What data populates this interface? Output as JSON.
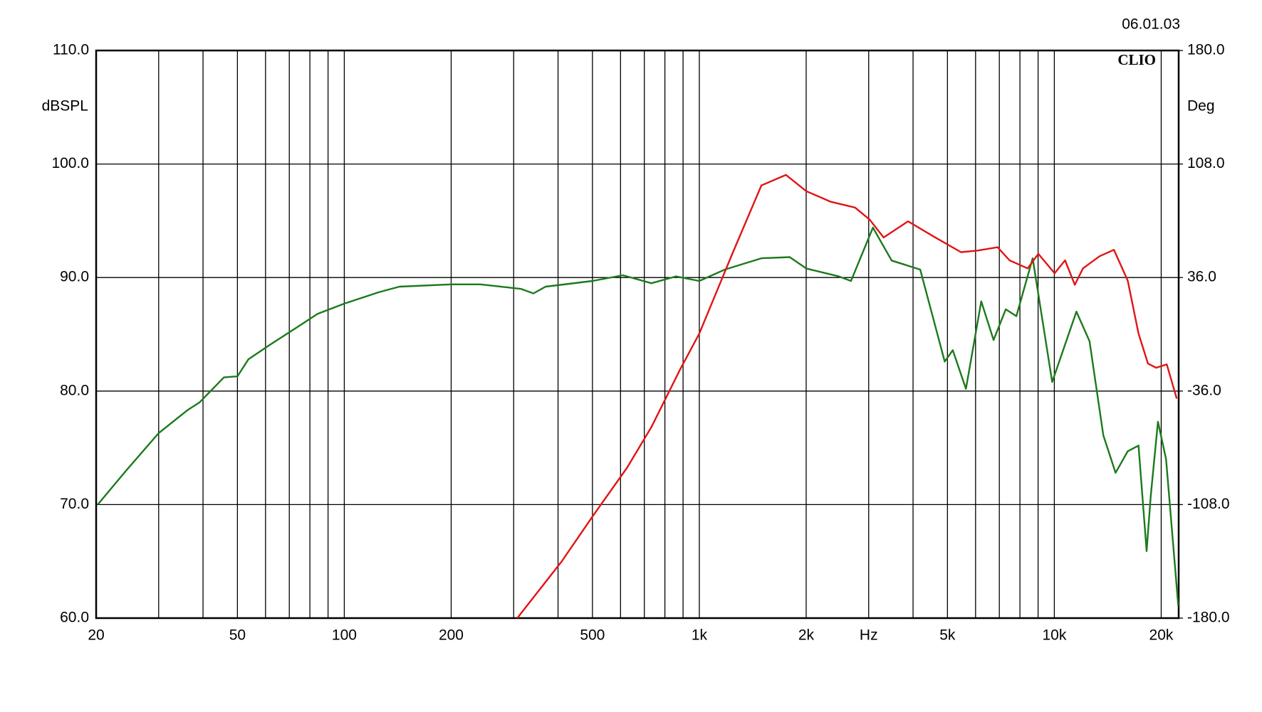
{
  "chart_data": {
    "type": "line",
    "date": "06.01.03",
    "brand": "CLIO",
    "y_label": "dBSPL",
    "y2_label": "Deg",
    "log_x": true,
    "grid": true,
    "xlim": [
      20,
      22400
    ],
    "xticks": [
      20,
      50,
      100,
      200,
      500,
      {
        "value": 1000,
        "label": "1k"
      },
      {
        "value": 2000,
        "label": "2k"
      },
      {
        "value": 3000,
        "label": "Hz"
      },
      {
        "value": 5000,
        "label": "5k"
      },
      {
        "value": 10000,
        "label": "10k"
      },
      {
        "value": 20000,
        "label": "20k"
      }
    ],
    "xminor_ticks": [
      30,
      40,
      60,
      70,
      80,
      90,
      300,
      400,
      600,
      700,
      800,
      900,
      4000,
      6000,
      7000,
      8000,
      9000
    ],
    "ylim": [
      60,
      110
    ],
    "yticks": [
      {
        "value": 60,
        "label": "60.0"
      },
      {
        "value": 70,
        "label": "70.0"
      },
      {
        "value": 80,
        "label": "80.0"
      },
      {
        "value": 90,
        "label": "90.0"
      },
      {
        "value": 100,
        "label": "100.0"
      },
      {
        "value": 110,
        "label": "110.0"
      }
    ],
    "y2lim": [
      -180,
      180
    ],
    "y2ticks": [
      {
        "value": -180,
        "label": "-180.0"
      },
      {
        "value": -108,
        "label": "-108.0"
      },
      {
        "value": -36,
        "label": "-36.0"
      },
      {
        "value": 36,
        "label": "36.0"
      },
      {
        "value": 108,
        "label": "108.0"
      },
      {
        "value": 180,
        "label": "180.0"
      }
    ],
    "series": [
      {
        "color": "#1b7a1b",
        "x": [
          20.2,
          24.3,
          30,
          36.1,
          39.1,
          45.8,
          50,
          53.7,
          61.2,
          71.8,
          84.1,
          100,
          125,
          143,
          200,
          242,
          315,
          341,
          369,
          500,
          609,
          733,
          859,
          1000,
          1180,
          1496,
          1798,
          2000,
          2472,
          2674,
          3084,
          3482,
          4190,
          4912,
          5176,
          5636,
          6226,
          6744,
          7296,
          7816,
          8690,
          9860,
          11540,
          12560,
          13740,
          14880,
          16100,
          17260,
          18200,
          18680,
          19580,
          20640,
          22340
        ],
        "values": [
          70.0,
          73.0,
          76.3,
          78.3,
          79.0,
          81.2,
          81.3,
          82.8,
          84.0,
          85.4,
          86.8,
          87.7,
          88.7,
          89.2,
          89.4,
          89.4,
          89.0,
          88.6,
          89.2,
          89.7,
          90.2,
          89.5,
          90.1,
          89.7,
          90.7,
          91.7,
          91.8,
          90.8,
          90.1,
          89.7,
          94.4,
          91.5,
          90.7,
          82.6,
          83.6,
          80.2,
          87.9,
          84.5,
          87.2,
          86.6,
          91.7,
          80.8,
          87.0,
          84.4,
          76.1,
          72.8,
          74.7,
          75.2,
          65.9,
          70.7,
          77.3,
          74.0,
          61.1
        ]
      },
      {
        "color": "#e01414",
        "axis": "y2",
        "x": [
          307,
          410,
          500,
          626,
          733,
          881,
          1000,
          1244,
          1496,
          1754,
          2000,
          2344,
          2746,
          3020,
          3304,
          3872,
          4540,
          5458,
          6068,
          6920,
          7480,
          8410,
          9016,
          10020,
          10720,
          11420,
          12040,
          13400,
          14720,
          16100,
          17260,
          18360,
          19360,
          20740,
          22120
        ],
        "values": [
          -180,
          -143.9,
          -115.6,
          -84.6,
          -58.8,
          -22.7,
          0.5,
          52.1,
          94.4,
          101.1,
          90.8,
          84.1,
          80.4,
          72.7,
          61.4,
          71.7,
          62.4,
          52.1,
          53.1,
          55.2,
          46.9,
          41.8,
          51.0,
          38.7,
          46.9,
          31.4,
          41.8,
          49.5,
          53.6,
          34.0,
          0.5,
          -18.6,
          -21.2,
          -19.1,
          -40.8
        ]
      }
    ]
  }
}
